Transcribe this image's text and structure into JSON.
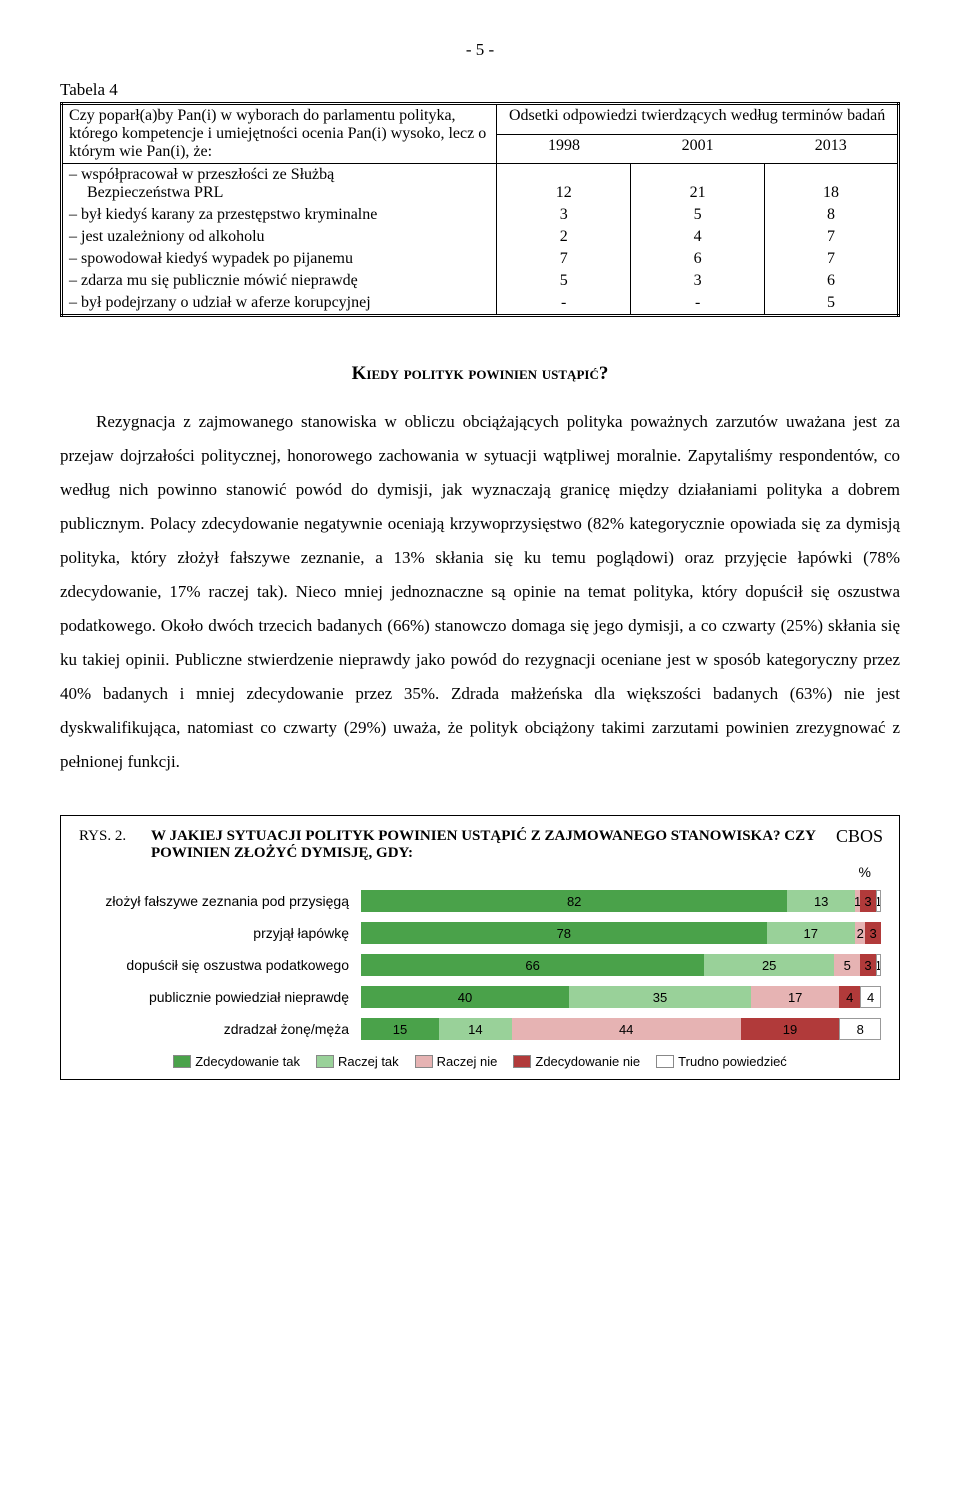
{
  "page_number": "- 5 -",
  "table": {
    "label": "Tabela 4",
    "stub_header": "Czy poparł(a)by Pan(i) w wyborach do parlamentu polityka, którego kompetencje i umiejętności ocenia Pan(i) wysoko, lecz o którym wie Pan(i), że:",
    "span_header": "Odsetki odpowiedzi twierdzących według terminów badań",
    "years": [
      "1998",
      "2001",
      "2013"
    ],
    "rows": [
      {
        "label": "współpracował w przeszłości ze Służbą",
        "sublabel": "Bezpieczeństwa PRL",
        "v": [
          "12",
          "21",
          "18"
        ]
      },
      {
        "label": "był kiedyś karany za przestępstwo kryminalne",
        "v": [
          "3",
          "5",
          "8"
        ]
      },
      {
        "label": "jest uzależniony od alkoholu",
        "v": [
          "2",
          "4",
          "7"
        ]
      },
      {
        "label": "spowodował kiedyś wypadek po pijanemu",
        "v": [
          "7",
          "6",
          "7"
        ]
      },
      {
        "label": "zdarza mu się publicznie mówić nieprawdę",
        "v": [
          "5",
          "3",
          "6"
        ]
      },
      {
        "label": "był podejrzany o udział w aferze korupcyjnej",
        "v": [
          "-",
          "-",
          "5"
        ]
      }
    ]
  },
  "section_heading": "Kiedy polityk powinien ustąpić?",
  "prose_text": "Rezygnacja z zajmowanego stanowiska w obliczu obciążających polityka poważnych zarzutów uważana jest za przejaw dojrzałości politycznej, honorowego zachowania w sytuacji wątpliwej moralnie. Zapytaliśmy respondentów, co według nich powinno stanowić powód do dymisji, jak wyznaczają granicę między działaniami polityka a dobrem publicznym. Polacy zdecydowanie negatywnie oceniają krzywoprzysięstwo (82% kategorycznie opowiada się za dymisją polityka, który złożył fałszywe zeznanie, a 13% skłania się ku temu poglądowi) oraz przyjęcie łapówki (78% zdecydowanie, 17% raczej tak). Nieco mniej jednoznaczne są opinie na temat polityka, który dopuścił się oszustwa podatkowego. Około dwóch trzecich badanych (66%) stanowczo domaga się jego dymisji, a co czwarty (25%) skłania się ku takiej opinii. Publiczne stwierdzenie nieprawdy jako powód do rezygnacji oceniane jest w sposób kategoryczny przez 40% badanych i mniej zdecydowanie przez 35%. Zdrada małżeńska dla większości badanych (63%) nie jest dyskwalifikująca, natomiast co czwarty (29%) uważa, że polityk obciążony takimi zarzutami powinien zrezygnować z pełnionej funkcji.",
  "chart": {
    "brand": "CBOS",
    "rys": "RYS. 2.",
    "title": "W JAKIEJ SYTUACJI POLITYK POWINIEN USTĄPIĆ Z ZAJMOWANEGO STANOWISKA? CZY POWINIEN ZŁOŻYĆ DYMISJĘ, GDY:",
    "pct_sign": "%",
    "colors": {
      "zdec_tak": "#4aa24a",
      "raczej_tak": "#99d199",
      "raczej_nie": "#e6b3b3",
      "zdec_nie": "#b13a3a",
      "trudno": "#ffffff"
    },
    "series_labels": {
      "zdec_tak": "Zdecydowanie tak",
      "raczej_tak": "Raczej tak",
      "raczej_nie": "Raczej nie",
      "zdec_nie": "Zdecydowanie nie",
      "trudno": "Trudno powiedzieć"
    },
    "rows": [
      {
        "label": "złożył fałszywe zeznania pod przysięgą",
        "values": [
          82,
          13,
          1,
          3,
          1
        ],
        "display": [
          "82",
          "13",
          "1",
          "3",
          "1"
        ]
      },
      {
        "label": "przyjął łapówkę",
        "values": [
          78,
          17,
          2,
          3,
          0
        ],
        "display": [
          "78",
          "17",
          "2",
          "3",
          ""
        ]
      },
      {
        "label": "dopuścił się oszustwa podatkowego",
        "values": [
          66,
          25,
          5,
          3,
          1
        ],
        "display": [
          "66",
          "25",
          "5",
          "3",
          "1"
        ]
      },
      {
        "label": "publicznie powiedział nieprawdę",
        "values": [
          40,
          35,
          17,
          4,
          4
        ],
        "display": [
          "40",
          "35",
          "17",
          "4",
          "4"
        ]
      },
      {
        "label": "zdradzał żonę/męża",
        "values": [
          15,
          14,
          44,
          19,
          8
        ],
        "display": [
          "15",
          "14",
          "44",
          "19",
          "8"
        ]
      }
    ]
  }
}
